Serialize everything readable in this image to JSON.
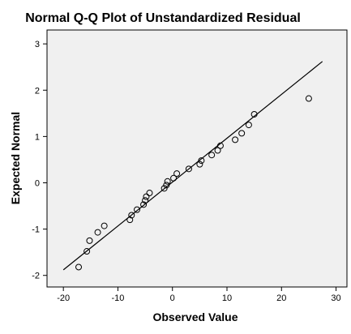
{
  "chart_data": {
    "type": "scatter",
    "title": "Normal Q-Q Plot of Unstandardized Residual",
    "xlabel": "Observed Value",
    "ylabel": "Expected Normal",
    "xlim": [
      -23,
      32
    ],
    "ylim": [
      -2.25,
      3.3
    ],
    "xticks": [
      -20,
      -10,
      0,
      10,
      20,
      30
    ],
    "yticks": [
      -2,
      -1,
      0,
      1,
      2,
      3
    ],
    "grid": false,
    "reference_line": {
      "x": [
        -20,
        27.5
      ],
      "y": [
        -1.88,
        2.62
      ]
    },
    "points": [
      {
        "x": -17.2,
        "y": -1.82
      },
      {
        "x": -15.7,
        "y": -1.48
      },
      {
        "x": -15.2,
        "y": -1.25
      },
      {
        "x": -13.7,
        "y": -1.07
      },
      {
        "x": -12.5,
        "y": -0.93
      },
      {
        "x": -7.8,
        "y": -0.8
      },
      {
        "x": -7.5,
        "y": -0.7
      },
      {
        "x": -6.5,
        "y": -0.58
      },
      {
        "x": -5.3,
        "y": -0.47
      },
      {
        "x": -5.0,
        "y": -0.38
      },
      {
        "x": -4.8,
        "y": -0.3
      },
      {
        "x": -4.2,
        "y": -0.22
      },
      {
        "x": -1.5,
        "y": -0.12
      },
      {
        "x": -1.1,
        "y": -0.05
      },
      {
        "x": -0.9,
        "y": 0.03
      },
      {
        "x": 0.2,
        "y": 0.1
      },
      {
        "x": 0.8,
        "y": 0.2
      },
      {
        "x": 3.0,
        "y": 0.3
      },
      {
        "x": 5.0,
        "y": 0.4
      },
      {
        "x": 5.3,
        "y": 0.48
      },
      {
        "x": 7.2,
        "y": 0.6
      },
      {
        "x": 8.3,
        "y": 0.7
      },
      {
        "x": 8.8,
        "y": 0.8
      },
      {
        "x": 11.5,
        "y": 0.93
      },
      {
        "x": 12.7,
        "y": 1.07
      },
      {
        "x": 14.0,
        "y": 1.25
      },
      {
        "x": 15.0,
        "y": 1.48
      },
      {
        "x": 25.0,
        "y": 1.82
      }
    ]
  }
}
